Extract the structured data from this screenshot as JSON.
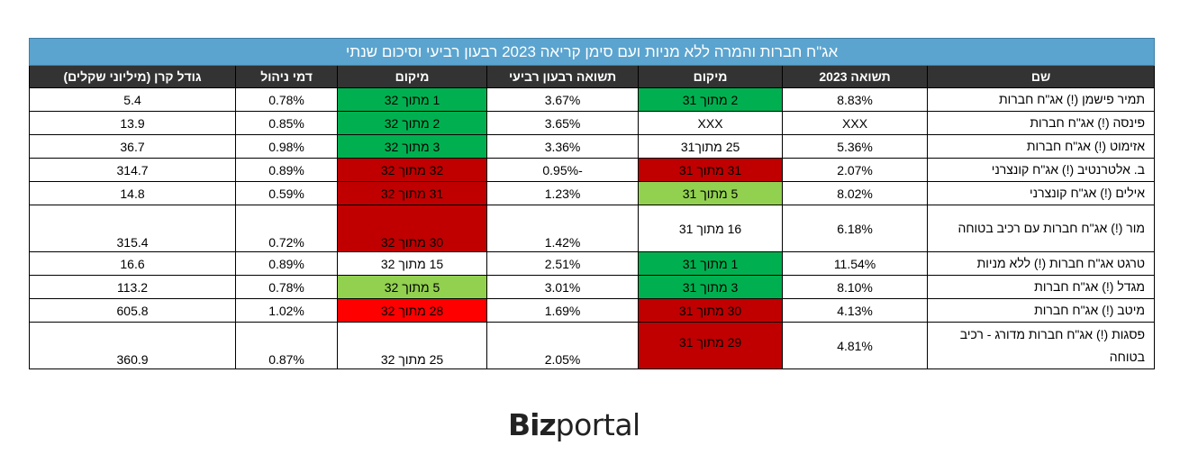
{
  "table": {
    "title": "אג\"ח חברות והמרה ללא מניות ועם סימן קריאה 2023 רבעון רביעי וסיכום שנתי",
    "headers": {
      "name": "שם",
      "return_2023": "תשואה 2023",
      "rank_annual": "מיקום",
      "return_q4": "תשואה רבעון רביעי",
      "rank_q4": "מיקום",
      "fee": "דמי ניהול",
      "size": "גודל קרן (מיליוני שקלים)"
    },
    "rows": [
      {
        "name": "תמיר פישמן (!) אג\"ח חברות",
        "return_2023": "8.83%",
        "rank_annual": "2 מתוך 31",
        "return_q4": "3.67%",
        "rank_q4": "1 מתוך 32",
        "fee": "0.78%",
        "size": "5.4",
        "annual_color": "#00b050",
        "q4_color": "#00b050"
      },
      {
        "name": "פינסה (!) אג\"ח חברות",
        "return_2023": "XXX",
        "rank_annual": "XXX",
        "return_q4": "3.65%",
        "rank_q4": "2 מתוך 32",
        "fee": "0.85%",
        "size": "13.9",
        "annual_color": "#ffffff",
        "q4_color": "#00b050"
      },
      {
        "name": "אזימוט (!) אג\"ח חברות",
        "return_2023": "5.36%",
        "rank_annual": "25 מתוך31",
        "return_q4": "3.36%",
        "rank_q4": "3 מתוך 32",
        "fee": "0.98%",
        "size": "36.7",
        "annual_color": "#ffffff",
        "q4_color": "#00b050"
      },
      {
        "name": "ב. אלטרנטיב (!) אג\"ח קונצרני",
        "return_2023": "2.07%",
        "rank_annual": "31 מתוך 31",
        "return_q4": "-0.95%",
        "rank_q4": "32 מתוך 32",
        "fee": "0.89%",
        "size": "314.7",
        "annual_color": "#c00000",
        "q4_color": "#c00000"
      },
      {
        "name": "אילים (!) אג\"ח קונצרני",
        "return_2023": "8.02%",
        "rank_annual": "5 מתוך 31",
        "return_q4": "1.23%",
        "rank_q4": "31 מתוך 32",
        "fee": "0.59%",
        "size": "14.8",
        "annual_color": "#92d050",
        "q4_color": "#c00000"
      },
      {
        "name": "מור (!) אג\"ח חברות עם רכיב בטוחה",
        "return_2023": "6.18%",
        "rank_annual": "16 מתוך 31",
        "return_q4": "1.42%",
        "rank_q4": "30 מתוך 32",
        "fee": "0.72%",
        "size": "315.4",
        "annual_color": "#ffffff",
        "q4_color": "#c00000"
      },
      {
        "name": "טרגט אג\"ח חברות (!) ללא מניות",
        "return_2023": "11.54%",
        "rank_annual": "1 מתוך 31",
        "return_q4": "2.51%",
        "rank_q4": "15 מתוך 32",
        "fee": "0.89%",
        "size": "16.6",
        "annual_color": "#00b050",
        "q4_color": "#ffffff"
      },
      {
        "name": "מגדל (!) אג\"ח חברות",
        "return_2023": "8.10%",
        "rank_annual": "3 מתוך 31",
        "return_q4": "3.01%",
        "rank_q4": "5 מתוך 32",
        "fee": "0.78%",
        "size": "113.2",
        "annual_color": "#00b050",
        "q4_color": "#92d050"
      },
      {
        "name": "מיטב (!) אג\"ח חברות",
        "return_2023": "4.13%",
        "rank_annual": "30 מתוך 31",
        "return_q4": "1.69%",
        "rank_q4": "28 מתוך 32",
        "fee": "1.02%",
        "size": "605.8",
        "annual_color": "#c00000",
        "q4_color": "#ff0000"
      },
      {
        "name": "פסגות (!) אג\"ח חברות מדורג - רכיב בטוחה",
        "return_2023": "4.81%",
        "rank_annual": "29 מתוך 31",
        "return_q4": "2.05%",
        "rank_q4": "25 מתוך 32",
        "fee": "0.87%",
        "size": "360.9",
        "annual_color": "#c00000",
        "q4_color": "#ffffff"
      }
    ]
  },
  "logo": {
    "part1": "Biz",
    "part2": "portal"
  }
}
